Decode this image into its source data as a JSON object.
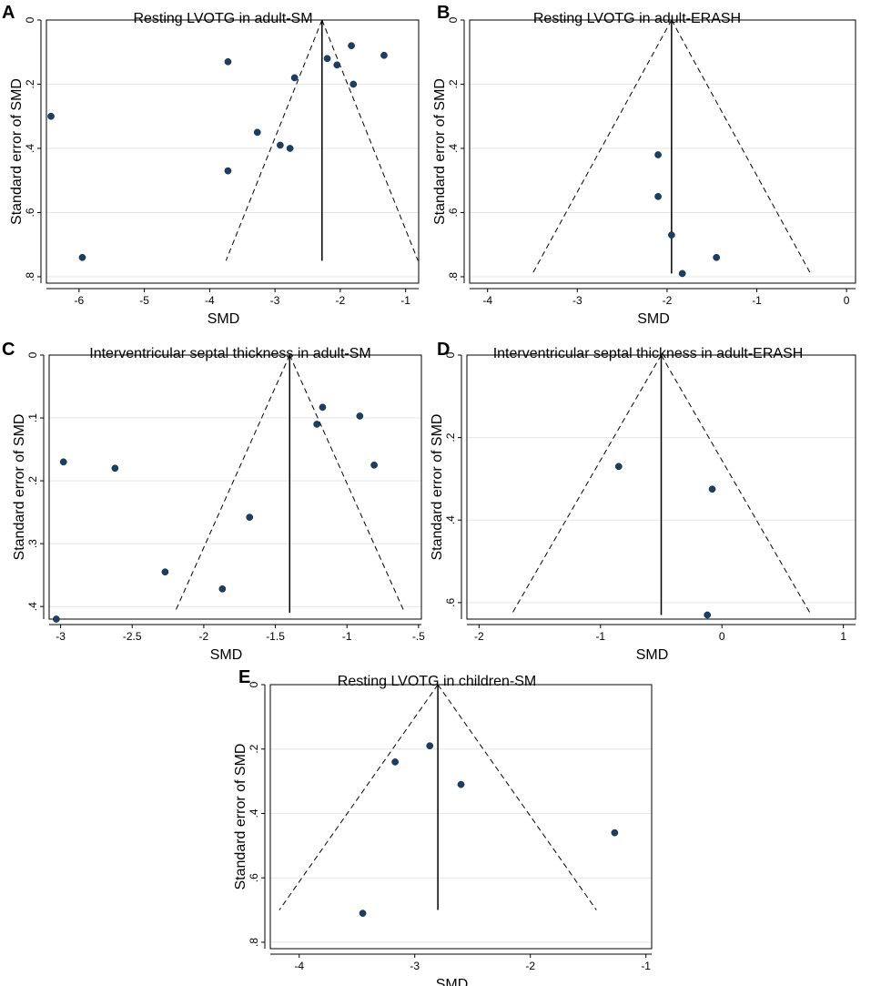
{
  "chart_data": [
    {
      "id": "A",
      "type": "scatter",
      "title": "Resting LVOTG in adult-SM",
      "xlabel": "SMD",
      "ylabel": "Standard error of SMD",
      "xlim": [
        -6.5,
        -0.8
      ],
      "ylim": [
        0,
        0.82
      ],
      "x_ticks": [
        -6,
        -5,
        -4,
        -3,
        -2,
        -1
      ],
      "x_tick_labels": [
        "-6",
        "-5",
        "-4",
        "-3",
        "-2",
        "-1"
      ],
      "y_ticks": [
        0,
        0.2,
        0.4,
        0.6,
        0.8
      ],
      "y_tick_labels": [
        "0",
        ".2",
        ".4",
        ".6",
        ".8"
      ],
      "grid": true,
      "pooled": -2.28,
      "funnel_se_max": 0.75,
      "points": [
        {
          "x": -6.43,
          "y": 0.3
        },
        {
          "x": -5.95,
          "y": 0.74
        },
        {
          "x": -3.72,
          "y": 0.13
        },
        {
          "x": -3.72,
          "y": 0.47
        },
        {
          "x": -3.27,
          "y": 0.35
        },
        {
          "x": -2.92,
          "y": 0.39
        },
        {
          "x": -2.77,
          "y": 0.4
        },
        {
          "x": -2.7,
          "y": 0.18
        },
        {
          "x": -2.2,
          "y": 0.12
        },
        {
          "x": -2.05,
          "y": 0.14
        },
        {
          "x": -1.83,
          "y": 0.08
        },
        {
          "x": -1.8,
          "y": 0.2
        },
        {
          "x": -1.33,
          "y": 0.11
        }
      ]
    },
    {
      "id": "B",
      "type": "scatter",
      "title": "Resting LVOTG in adult-ERASH",
      "xlabel": "SMD",
      "ylabel": "Standard error of SMD",
      "xlim": [
        -4.2,
        0.1
      ],
      "ylim": [
        0,
        0.82
      ],
      "x_ticks": [
        -4,
        -3,
        -2,
        -1,
        0
      ],
      "x_tick_labels": [
        "-4",
        "-3",
        "-2",
        "-1",
        "0"
      ],
      "y_ticks": [
        0,
        0.2,
        0.4,
        0.6,
        0.8
      ],
      "y_tick_labels": [
        "0",
        ".2",
        ".4",
        ".6",
        ".8"
      ],
      "grid": true,
      "pooled": -1.95,
      "funnel_se_max": 0.79,
      "points": [
        {
          "x": -2.1,
          "y": 0.42
        },
        {
          "x": -2.1,
          "y": 0.55
        },
        {
          "x": -1.95,
          "y": 0.67
        },
        {
          "x": -1.83,
          "y": 0.79
        },
        {
          "x": -1.45,
          "y": 0.74
        }
      ]
    },
    {
      "id": "C",
      "type": "scatter",
      "title": "Interventricular septal thickness in adult-SM",
      "xlabel": "SMD",
      "ylabel": "Standard error of SMD",
      "xlim": [
        -3.08,
        -0.48
      ],
      "ylim": [
        0,
        0.42
      ],
      "x_ticks": [
        -3,
        -2.5,
        -2,
        -1.5,
        -1,
        -0.5
      ],
      "x_tick_labels": [
        "-3",
        "-2.5",
        "-2",
        "-1.5",
        "-1",
        "-.5"
      ],
      "y_ticks": [
        0,
        0.1,
        0.2,
        0.3,
        0.4
      ],
      "y_tick_labels": [
        "0",
        ".1",
        ".2",
        ".3",
        ".4"
      ],
      "grid": true,
      "pooled": -1.4,
      "funnel_se_max": 0.41,
      "points": [
        {
          "x": -3.03,
          "y": 0.42
        },
        {
          "x": -2.98,
          "y": 0.17
        },
        {
          "x": -2.62,
          "y": 0.18
        },
        {
          "x": -2.27,
          "y": 0.345
        },
        {
          "x": -1.87,
          "y": 0.372
        },
        {
          "x": -1.68,
          "y": 0.258
        },
        {
          "x": -1.21,
          "y": 0.11
        },
        {
          "x": -1.17,
          "y": 0.083
        },
        {
          "x": -0.91,
          "y": 0.097
        },
        {
          "x": -0.81,
          "y": 0.175
        }
      ]
    },
    {
      "id": "D",
      "type": "scatter",
      "title": "Interventricular septal thickness in adult-ERASH",
      "xlabel": "SMD",
      "ylabel": "Standard error of SMD",
      "xlim": [
        -2.1,
        1.1
      ],
      "ylim": [
        0,
        0.64
      ],
      "x_ticks": [
        -2,
        -1,
        0,
        1
      ],
      "x_tick_labels": [
        "-2",
        "-1",
        "0",
        "1"
      ],
      "y_ticks": [
        0,
        0.2,
        0.4,
        0.6
      ],
      "y_tick_labels": [
        "0",
        ".2",
        ".4",
        ".6"
      ],
      "grid": true,
      "pooled": -0.5,
      "funnel_se_max": 0.63,
      "points": [
        {
          "x": -0.85,
          "y": 0.27
        },
        {
          "x": -0.08,
          "y": 0.325
        },
        {
          "x": -0.12,
          "y": 0.63
        }
      ]
    },
    {
      "id": "E",
      "type": "scatter",
      "title": "Resting LVOTG in children-SM",
      "xlabel": "SMD",
      "ylabel": "Standard error of SMD",
      "xlim": [
        -4.25,
        -0.95
      ],
      "ylim": [
        0,
        0.82
      ],
      "x_ticks": [
        -4,
        -3,
        -2,
        -1
      ],
      "x_tick_labels": [
        "-4",
        "-3",
        "-2",
        "-1"
      ],
      "y_ticks": [
        0,
        0.2,
        0.4,
        0.6,
        0.8
      ],
      "y_tick_labels": [
        "0",
        ".2",
        ".4",
        ".6",
        ".8"
      ],
      "grid": true,
      "pooled": -2.8,
      "funnel_se_max": 0.7,
      "points": [
        {
          "x": -3.45,
          "y": 0.71
        },
        {
          "x": -3.17,
          "y": 0.24
        },
        {
          "x": -2.87,
          "y": 0.19
        },
        {
          "x": -2.6,
          "y": 0.31
        },
        {
          "x": -1.27,
          "y": 0.46
        }
      ]
    }
  ]
}
